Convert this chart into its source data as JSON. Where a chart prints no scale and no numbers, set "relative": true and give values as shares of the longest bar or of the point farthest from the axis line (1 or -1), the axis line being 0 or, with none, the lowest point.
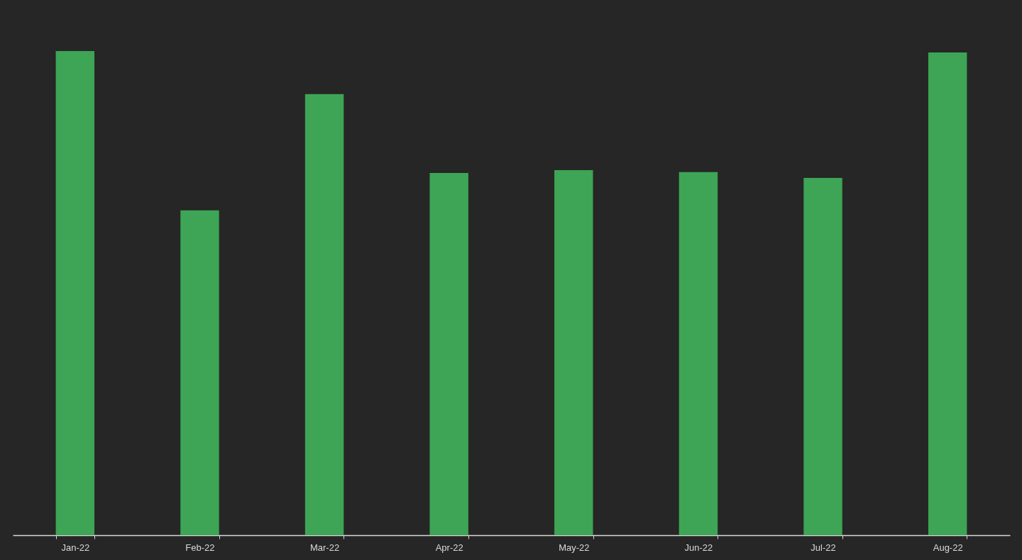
{
  "chart_data": {
    "type": "bar",
    "relative": true,
    "categories": [
      "Jan-22",
      "Feb-22",
      "Mar-22",
      "Apr-22",
      "May-22",
      "Jun-22",
      "Jul-22",
      "Aug-22"
    ],
    "values": [
      1,
      0.671,
      0.911,
      0.748,
      0.754,
      0.75,
      0.738,
      0.997
    ],
    "color": "#3da555",
    "grid": false
  }
}
